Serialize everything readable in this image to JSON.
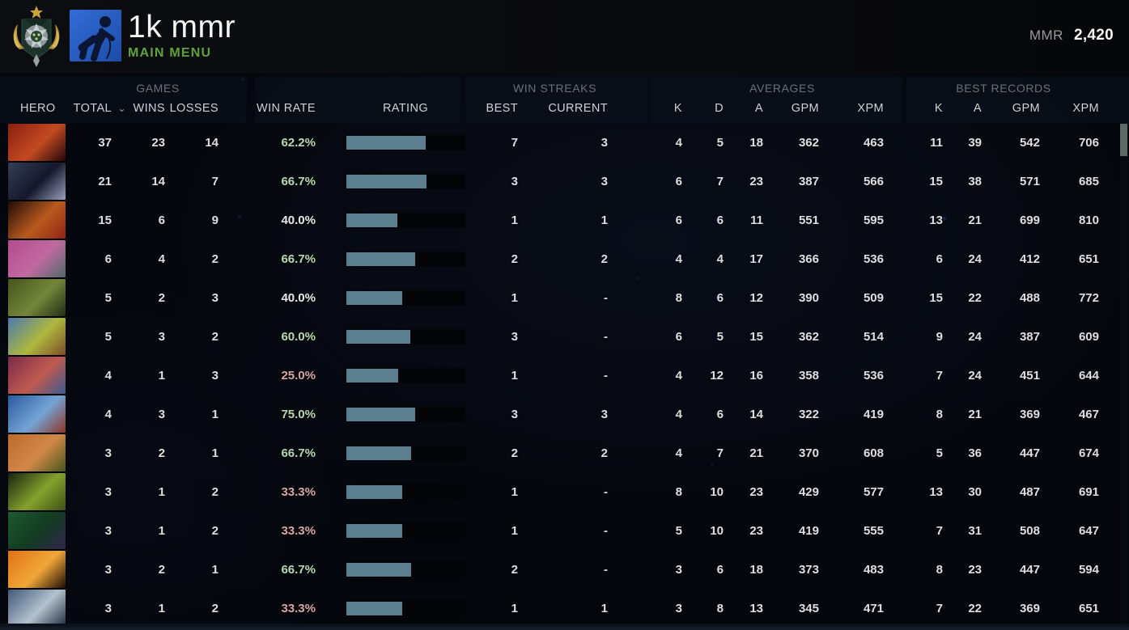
{
  "topbar": {
    "title": "1k mmr",
    "subtitle": "MAIN MENU",
    "mmr_label": "MMR",
    "mmr_value": "2,420"
  },
  "icons": {
    "rank_emblem": "rank-medal-emblem",
    "avatar": "player-avatar-falling-figure",
    "sort_chevron": "⌄"
  },
  "colors": {
    "accent_green": "#5fa33c",
    "bar_fill": "#5c7f90",
    "win_rate_positive": "#b7d9ae",
    "win_rate_negative": "#d9a5a3",
    "win_rate_neutral": "#e9e9e9",
    "avatar_blue": "#2a64cc"
  },
  "table": {
    "groups": {
      "games": "GAMES",
      "win_streaks": "WIN STREAKS",
      "averages": "AVERAGES",
      "best_records": "BEST RECORDS"
    },
    "columns": {
      "hero": "HERO",
      "total": "TOTAL",
      "wins": "WINS",
      "losses": "LOSSES",
      "win_rate": "WIN RATE",
      "rating": "RATING",
      "best": "BEST",
      "current": "CURRENT",
      "k": "K",
      "d": "D",
      "a": "A",
      "gpm": "GPM",
      "xpm": "XPM",
      "k2": "K",
      "a2": "A",
      "gpm2": "GPM",
      "xpm2": "XPM"
    },
    "rows": [
      {
        "hero": "warlock",
        "total": 37,
        "wins": 23,
        "losses": 14,
        "win_rate": "62.2%",
        "win_rate_class": "pos",
        "rating_pct": 67,
        "streak_best": "7",
        "streak_current": "3",
        "avg_k": 4,
        "avg_d": 5,
        "avg_a": 18,
        "avg_gpm": 362,
        "avg_xpm": 463,
        "best_k": 11,
        "best_a": 39,
        "best_gpm": 542,
        "best_xpm": 706,
        "portrait": [
          "#8a1e10",
          "#c24a20",
          "#24080a"
        ]
      },
      {
        "hero": "mirana",
        "total": 21,
        "wins": 14,
        "losses": 7,
        "win_rate": "66.7%",
        "win_rate_class": "pos",
        "rating_pct": 68,
        "streak_best": "3",
        "streak_current": "3",
        "avg_k": 6,
        "avg_d": 7,
        "avg_a": 23,
        "avg_gpm": 387,
        "avg_xpm": 566,
        "best_k": 15,
        "best_a": 38,
        "best_gpm": 571,
        "best_xpm": 685,
        "portrait": [
          "#333d55",
          "#15182a",
          "#9aa0c0"
        ]
      },
      {
        "hero": "bloodseeker",
        "total": 15,
        "wins": 6,
        "losses": 9,
        "win_rate": "40.0%",
        "win_rate_class": "neu",
        "rating_pct": 43,
        "streak_best": "1",
        "streak_current": "1",
        "avg_k": 6,
        "avg_d": 6,
        "avg_a": 11,
        "avg_gpm": 551,
        "avg_xpm": 595,
        "best_k": 13,
        "best_a": 21,
        "best_gpm": 699,
        "best_xpm": 810,
        "portrait": [
          "#1e0c06",
          "#b85a1e",
          "#902416"
        ]
      },
      {
        "hero": "dazzle",
        "total": 6,
        "wins": 4,
        "losses": 2,
        "win_rate": "66.7%",
        "win_rate_class": "pos",
        "rating_pct": 58,
        "streak_best": "2",
        "streak_current": "2",
        "avg_k": 4,
        "avg_d": 4,
        "avg_a": 17,
        "avg_gpm": 366,
        "avg_xpm": 536,
        "best_k": 6,
        "best_a": 24,
        "best_gpm": 412,
        "best_xpm": 651,
        "portrait": [
          "#b44a8e",
          "#c06aa0",
          "#4e6a6a"
        ]
      },
      {
        "hero": "natures-prophet",
        "total": 5,
        "wins": 2,
        "losses": 3,
        "win_rate": "40.0%",
        "win_rate_class": "neu",
        "rating_pct": 47,
        "streak_best": "1",
        "streak_current": "-",
        "avg_k": 8,
        "avg_d": 6,
        "avg_a": 12,
        "avg_gpm": 390,
        "avg_xpm": 509,
        "best_k": 15,
        "best_a": 22,
        "best_gpm": 488,
        "best_xpm": 772,
        "portrait": [
          "#44541e",
          "#74863a",
          "#222c14"
        ]
      },
      {
        "hero": "hoodwink",
        "total": 5,
        "wins": 3,
        "losses": 2,
        "win_rate": "60.0%",
        "win_rate_class": "pos",
        "rating_pct": 54,
        "streak_best": "3",
        "streak_current": "-",
        "avg_k": 6,
        "avg_d": 5,
        "avg_a": 15,
        "avg_gpm": 362,
        "avg_xpm": 514,
        "best_k": 9,
        "best_a": 24,
        "best_gpm": 387,
        "best_xpm": 609,
        "portrait": [
          "#4a7ab0",
          "#b0b83e",
          "#7a4a28"
        ]
      },
      {
        "hero": "slardar",
        "total": 4,
        "wins": 1,
        "losses": 3,
        "win_rate": "25.0%",
        "win_rate_class": "neg",
        "rating_pct": 44,
        "streak_best": "1",
        "streak_current": "-",
        "avg_k": 4,
        "avg_d": 12,
        "avg_a": 16,
        "avg_gpm": 358,
        "avg_xpm": 536,
        "best_k": 7,
        "best_a": 24,
        "best_gpm": 451,
        "best_xpm": 644,
        "portrait": [
          "#7a2a4a",
          "#c05a50",
          "#3a5a8e"
        ]
      },
      {
        "hero": "ogre-magi",
        "total": 4,
        "wins": 3,
        "losses": 1,
        "win_rate": "75.0%",
        "win_rate_class": "pos",
        "rating_pct": 58,
        "streak_best": "3",
        "streak_current": "3",
        "avg_k": 4,
        "avg_d": 6,
        "avg_a": 14,
        "avg_gpm": 322,
        "avg_xpm": 419,
        "best_k": 8,
        "best_a": 21,
        "best_gpm": 369,
        "best_xpm": 467,
        "portrait": [
          "#2a5aa0",
          "#74a4d4",
          "#8e3424"
        ]
      },
      {
        "hero": "windranger",
        "total": 3,
        "wins": 2,
        "losses": 1,
        "win_rate": "66.7%",
        "win_rate_class": "pos",
        "rating_pct": 55,
        "streak_best": "2",
        "streak_current": "2",
        "avg_k": 4,
        "avg_d": 7,
        "avg_a": 21,
        "avg_gpm": 370,
        "avg_xpm": 608,
        "best_k": 5,
        "best_a": 36,
        "best_gpm": 447,
        "best_xpm": 674,
        "portrait": [
          "#bc6a2c",
          "#d08848",
          "#44541e"
        ]
      },
      {
        "hero": "venomancer",
        "total": 3,
        "wins": 1,
        "losses": 2,
        "win_rate": "33.3%",
        "win_rate_class": "neg",
        "rating_pct": 47,
        "streak_best": "1",
        "streak_current": "-",
        "avg_k": 8,
        "avg_d": 10,
        "avg_a": 23,
        "avg_gpm": 429,
        "avg_xpm": 577,
        "best_k": 13,
        "best_a": 30,
        "best_gpm": 487,
        "best_xpm": 691,
        "portrait": [
          "#1a2410",
          "#84a22c",
          "#3c5016"
        ]
      },
      {
        "hero": "rubick",
        "total": 3,
        "wins": 1,
        "losses": 2,
        "win_rate": "33.3%",
        "win_rate_class": "neg",
        "rating_pct": 47,
        "streak_best": "1",
        "streak_current": "-",
        "avg_k": 5,
        "avg_d": 10,
        "avg_a": 23,
        "avg_gpm": 419,
        "avg_xpm": 555,
        "best_k": 7,
        "best_a": 31,
        "best_gpm": 508,
        "best_xpm": 647,
        "portrait": [
          "#1e5a30",
          "#123a22",
          "#34244e"
        ]
      },
      {
        "hero": "phoenix",
        "total": 3,
        "wins": 2,
        "losses": 1,
        "win_rate": "66.7%",
        "win_rate_class": "pos",
        "rating_pct": 55,
        "streak_best": "2",
        "streak_current": "-",
        "avg_k": 3,
        "avg_d": 6,
        "avg_a": 18,
        "avg_gpm": 373,
        "avg_xpm": 483,
        "best_k": 8,
        "best_a": 23,
        "best_gpm": 447,
        "best_xpm": 594,
        "portrait": [
          "#e07018",
          "#f0a838",
          "#1e0c04"
        ]
      },
      {
        "hero": "spirit-breaker",
        "total": 3,
        "wins": 1,
        "losses": 2,
        "win_rate": "33.3%",
        "win_rate_class": "neg",
        "rating_pct": 47,
        "streak_best": "1",
        "streak_current": "1",
        "avg_k": 3,
        "avg_d": 8,
        "avg_a": 13,
        "avg_gpm": 345,
        "avg_xpm": 471,
        "best_k": 7,
        "best_a": 22,
        "best_gpm": 369,
        "best_xpm": 651,
        "portrait": [
          "#42587a",
          "#b4c2ce",
          "#1e2a3a"
        ]
      }
    ]
  }
}
